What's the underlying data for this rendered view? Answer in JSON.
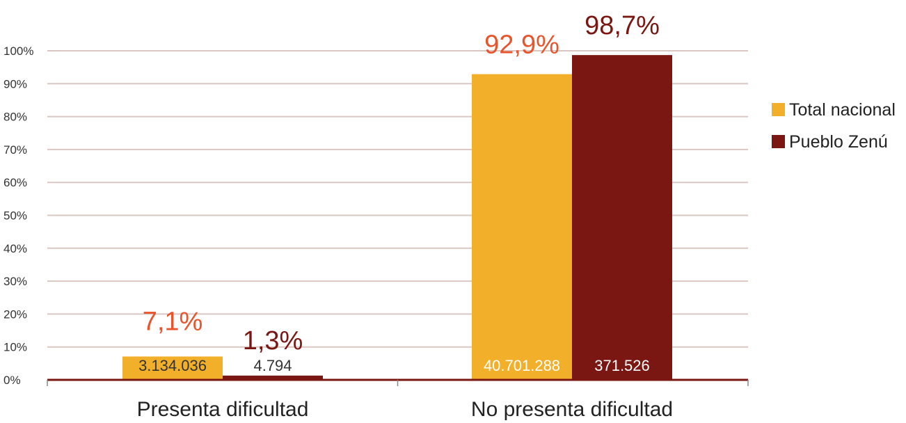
{
  "chart_data": {
    "type": "bar",
    "categories": [
      "Presenta dificultad",
      "No presenta dificultad"
    ],
    "series": [
      {
        "name": "Total nacional",
        "color": "#F2B02A",
        "label_color": "#E8552C",
        "values": [
          7.1,
          92.9
        ],
        "value_labels": [
          "7,1%",
          "92,9%"
        ],
        "count_labels": [
          "3.134.036",
          "40.701.288"
        ]
      },
      {
        "name": "Pueblo Zenú",
        "color": "#7A1712",
        "label_color": "#7A1712",
        "values": [
          1.3,
          98.7
        ],
        "value_labels": [
          "1,3%",
          "98,7%"
        ],
        "count_labels": [
          "4.794",
          "371.526"
        ]
      }
    ],
    "ylim": [
      0,
      100
    ],
    "yticks": [
      0,
      10,
      20,
      30,
      40,
      50,
      60,
      70,
      80,
      90,
      100
    ],
    "ytick_labels": [
      "0%",
      "10%",
      "20%",
      "30%",
      "40%",
      "50%",
      "60%",
      "70%",
      "80%",
      "90%",
      "100%"
    ],
    "grid": true,
    "legend_position": "right",
    "grid_color": "#D9C7C3",
    "axis_color": "#7A1712"
  }
}
